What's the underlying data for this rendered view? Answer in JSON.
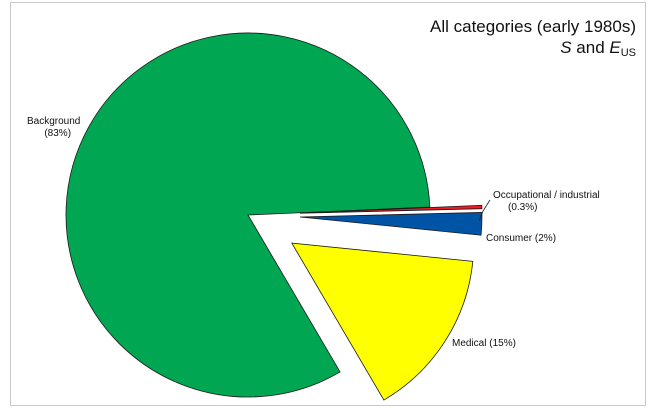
{
  "title": {
    "line1": "All categories (early 1980s)",
    "line2_s": "S",
    "line2_and": " and ",
    "line2_e": "E",
    "line2_sub": "US"
  },
  "chart_data": {
    "type": "pie",
    "title": "All categories (early 1980s) S and E_US",
    "slices": [
      {
        "label": "Background",
        "pct_label": "(83%)",
        "value": 83,
        "color": "#00a651",
        "exploded": false
      },
      {
        "label": "Medical",
        "pct_label": "(15%)",
        "value": 15,
        "color": "#ffff00",
        "exploded": true
      },
      {
        "label": "Consumer",
        "pct_label": "(2%)",
        "value": 2,
        "color": "#0054a6",
        "exploded": true
      },
      {
        "label": "Occupational / industrial",
        "pct_label": "(0.3%)",
        "value": 0.3,
        "color": "#ed1c24",
        "exploded": true
      }
    ],
    "labels": {
      "background": "Background",
      "background_pct": "(83%)",
      "medical": "Medical (15%)",
      "consumer": "Consumer (2%)",
      "occupational": "Occupational / industrial",
      "occupational_pct": "(0.3%)"
    }
  }
}
